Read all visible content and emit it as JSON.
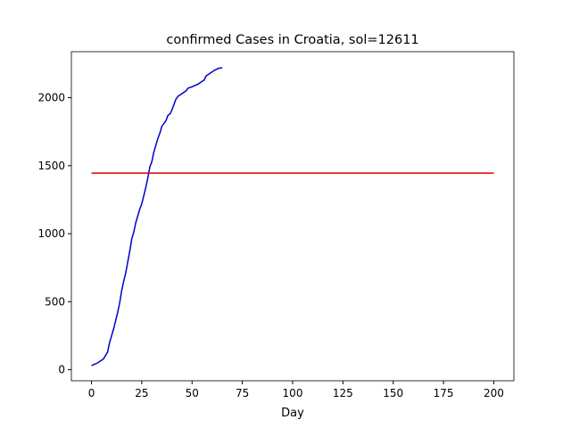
{
  "chart_data": {
    "type": "line",
    "title": "confirmed Cases in Croatia, sol=12611",
    "xlabel": "Day",
    "xlim": [
      -10,
      210
    ],
    "xticks": [
      0,
      25,
      50,
      75,
      100,
      125,
      150,
      175,
      200
    ],
    "ylim": [
      -81,
      2338
    ],
    "yticks": [
      0,
      500,
      1000,
      1500,
      2000
    ],
    "grid": false,
    "series": [
      {
        "color": "#0000cc",
        "x": [
          0,
          3,
          6,
          8,
          9,
          11,
          13,
          14,
          15,
          16,
          17,
          18,
          19,
          20,
          21,
          22,
          23,
          24,
          25,
          26,
          27,
          28,
          29,
          30,
          31,
          32,
          33,
          34,
          35,
          36,
          37,
          38,
          39,
          40,
          41,
          42,
          43,
          45,
          47,
          48,
          50,
          53,
          55,
          56,
          57,
          59,
          61,
          63,
          65
        ],
        "values": [
          30,
          50,
          80,
          130,
          200,
          300,
          420,
          490,
          580,
          650,
          710,
          790,
          870,
          960,
          1010,
          1080,
          1130,
          1180,
          1220,
          1280,
          1340,
          1410,
          1490,
          1530,
          1600,
          1650,
          1700,
          1740,
          1790,
          1810,
          1830,
          1870,
          1880,
          1910,
          1950,
          1990,
          2010,
          2030,
          2050,
          2070,
          2080,
          2100,
          2120,
          2130,
          2160,
          2180,
          2200,
          2215,
          2220
        ]
      },
      {
        "color": "#dd0000",
        "x": [
          0,
          200
        ],
        "values": [
          1446,
          1446
        ]
      }
    ]
  }
}
